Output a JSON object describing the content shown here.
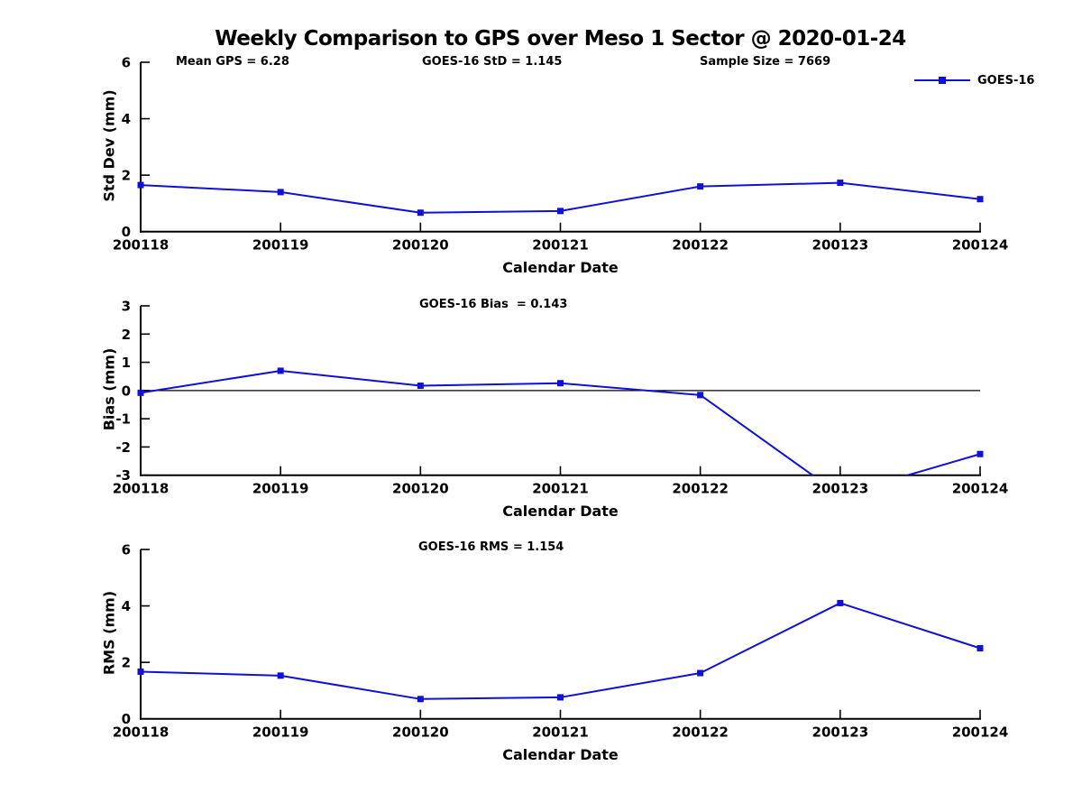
{
  "title": "Weekly Comparison to GPS over Meso 1 Sector @ 2020-01-24",
  "legend": {
    "label": "GOES-16"
  },
  "colors": {
    "series": "#1010d8",
    "axis": "#000000"
  },
  "chart_data": [
    {
      "name": "std-dev",
      "type": "line",
      "categories": [
        "200118",
        "200119",
        "200120",
        "200121",
        "200122",
        "200123",
        "200124"
      ],
      "series": [
        {
          "name": "GOES-16",
          "values": [
            1.65,
            1.4,
            0.67,
            0.73,
            1.6,
            1.73,
            1.15
          ]
        }
      ],
      "xlabel": "Calendar Date",
      "ylabel": "Std Dev (mm)",
      "ylim": [
        0,
        6
      ],
      "yticks": [
        0,
        2,
        4,
        6
      ],
      "grid": false,
      "legend_position": "top-right",
      "annotations": [
        {
          "text": "Mean GPS = 6.28"
        },
        {
          "text": "GOES-16 StD = 1.145"
        },
        {
          "text": "Sample Size = 7669"
        }
      ]
    },
    {
      "name": "bias",
      "type": "line",
      "categories": [
        "200118",
        "200119",
        "200120",
        "200121",
        "200122",
        "200123",
        "200124"
      ],
      "series": [
        {
          "name": "GOES-16",
          "values": [
            -0.08,
            0.7,
            0.17,
            0.26,
            -0.16,
            -3.7,
            -2.25
          ]
        }
      ],
      "xlabel": "Calendar Date",
      "ylabel": "Bias (mm)",
      "ylim": [
        -3,
        3
      ],
      "yticks": [
        -3,
        -2,
        -1,
        0,
        1,
        2,
        3
      ],
      "zero_line": true,
      "grid": false,
      "annotations": [
        {
          "text": "GOES-16 Bias  = 0.143"
        }
      ]
    },
    {
      "name": "rms",
      "type": "line",
      "categories": [
        "200118",
        "200119",
        "200120",
        "200121",
        "200122",
        "200123",
        "200124"
      ],
      "series": [
        {
          "name": "GOES-16",
          "values": [
            1.67,
            1.53,
            0.7,
            0.76,
            1.62,
            4.1,
            2.5
          ]
        }
      ],
      "xlabel": "Calendar Date",
      "ylabel": "RMS (mm)",
      "ylim": [
        0,
        6
      ],
      "yticks": [
        0,
        2,
        4,
        6
      ],
      "grid": false,
      "annotations": [
        {
          "text": "GOES-16 RMS = 1.154"
        }
      ]
    }
  ]
}
